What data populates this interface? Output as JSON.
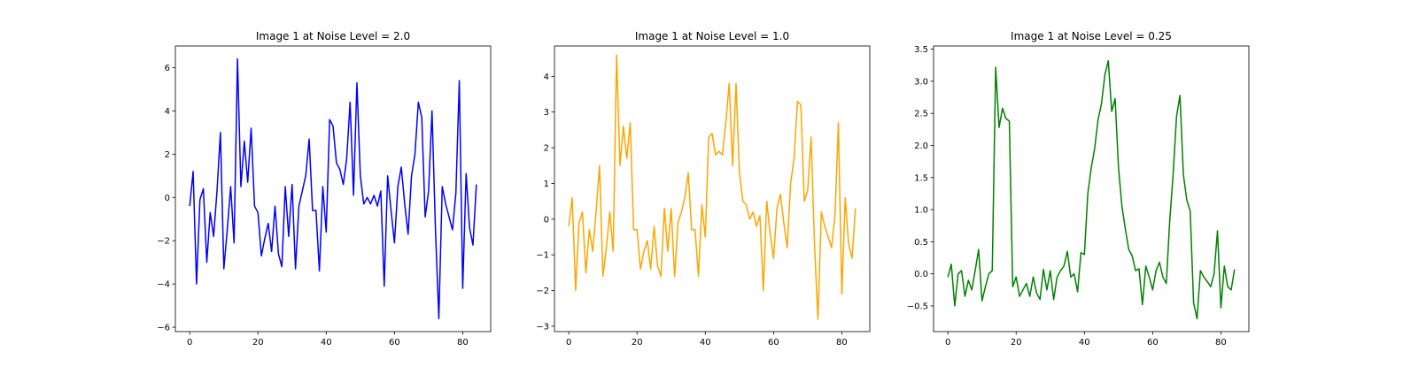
{
  "chart_data": [
    {
      "type": "line",
      "title": "Image 1 at Noise Level = 2.0",
      "color": "#0000ff",
      "xlim": [
        -4.2,
        88.2
      ],
      "ylim": [
        -6.2,
        7.0
      ],
      "xticks": [
        0,
        20,
        40,
        60,
        80
      ],
      "yticks": [
        -6,
        -4,
        -2,
        0,
        2,
        4,
        6
      ],
      "series": [
        {
          "x": [
            0,
            1,
            2,
            3,
            4,
            5,
            6,
            7,
            8,
            9,
            10,
            11,
            12,
            13,
            14,
            15,
            16,
            17,
            18,
            19,
            20,
            21,
            22,
            23,
            24,
            25,
            26,
            27,
            28,
            29,
            30,
            31,
            32,
            33,
            34,
            35,
            36,
            37,
            38,
            39,
            40,
            41,
            42,
            43,
            44,
            45,
            46,
            47,
            48,
            49,
            50,
            51,
            52,
            53,
            54,
            55,
            56,
            57,
            58,
            59,
            60,
            61,
            62,
            63,
            64,
            65,
            66,
            67,
            68,
            69,
            70,
            71,
            72,
            73,
            74,
            75,
            76,
            77,
            78,
            79,
            80,
            81,
            82,
            83,
            84
          ],
          "values": [
            -0.4,
            1.2,
            -4.0,
            -0.1,
            0.4,
            -3.0,
            -0.7,
            -1.8,
            0.3,
            3.0,
            -3.3,
            -1.5,
            0.5,
            -2.1,
            6.4,
            0.5,
            2.6,
            0.7,
            3.2,
            -0.4,
            -0.7,
            -2.7,
            -1.9,
            -1.2,
            -2.5,
            -0.4,
            -2.6,
            -3.2,
            0.5,
            -1.8,
            0.6,
            -3.3,
            -0.4,
            0.3,
            1.0,
            2.7,
            -0.6,
            -0.6,
            -3.4,
            0.5,
            -1.6,
            3.6,
            3.3,
            1.6,
            1.3,
            0.6,
            1.8,
            4.4,
            0.1,
            5.3,
            1.0,
            -0.3,
            0.0,
            -0.3,
            0.1,
            -0.4,
            0.3,
            -4.1,
            1.0,
            -0.6,
            -2.1,
            0.5,
            1.4,
            -0.3,
            -1.7,
            1.0,
            2.0,
            4.4,
            3.7,
            -0.9,
            0.3,
            4.0,
            -1.4,
            -5.6,
            0.5,
            -0.3,
            -0.9,
            -1.5,
            0.2,
            5.4,
            -4.2,
            1.1,
            -1.4,
            -2.2,
            0.6
          ]
        }
      ]
    },
    {
      "type": "line",
      "title": "Image 1 at Noise Level = 1.0",
      "color": "#ffa500",
      "xlim": [
        -4.2,
        88.2
      ],
      "ylim": [
        -3.15,
        4.85
      ],
      "xticks": [
        0,
        20,
        40,
        60,
        80
      ],
      "yticks": [
        -3,
        -2,
        -1,
        0,
        1,
        2,
        3,
        4
      ],
      "series": [
        {
          "x": [
            0,
            1,
            2,
            3,
            4,
            5,
            6,
            7,
            8,
            9,
            10,
            11,
            12,
            13,
            14,
            15,
            16,
            17,
            18,
            19,
            20,
            21,
            22,
            23,
            24,
            25,
            26,
            27,
            28,
            29,
            30,
            31,
            32,
            33,
            34,
            35,
            36,
            37,
            38,
            39,
            40,
            41,
            42,
            43,
            44,
            45,
            46,
            47,
            48,
            49,
            50,
            51,
            52,
            53,
            54,
            55,
            56,
            57,
            58,
            59,
            60,
            61,
            62,
            63,
            64,
            65,
            66,
            67,
            68,
            69,
            70,
            71,
            72,
            73,
            74,
            75,
            76,
            77,
            78,
            79,
            80,
            81,
            82,
            83,
            84
          ],
          "values": [
            -0.2,
            0.6,
            -2.0,
            -0.1,
            0.2,
            -1.5,
            -0.3,
            -0.9,
            0.2,
            1.5,
            -1.6,
            -0.8,
            0.2,
            -0.9,
            4.6,
            1.5,
            2.6,
            1.7,
            2.7,
            -0.3,
            -0.3,
            -1.4,
            -0.9,
            -0.6,
            -1.4,
            -0.2,
            -1.3,
            -1.6,
            0.3,
            -0.9,
            0.3,
            -1.6,
            -0.1,
            0.2,
            0.6,
            1.3,
            -0.3,
            -0.3,
            -1.6,
            0.4,
            -0.5,
            2.3,
            2.4,
            1.8,
            1.9,
            1.8,
            2.7,
            3.8,
            1.5,
            3.8,
            1.3,
            0.5,
            0.4,
            0.0,
            0.2,
            -0.2,
            0.1,
            -2.0,
            0.5,
            -0.4,
            -1.1,
            0.3,
            0.7,
            -0.1,
            -0.8,
            1.0,
            1.7,
            3.3,
            3.2,
            0.5,
            0.8,
            2.3,
            -0.7,
            -2.8,
            0.2,
            -0.2,
            -0.5,
            -0.8,
            0.1,
            2.7,
            -2.1,
            0.6,
            -0.7,
            -1.1,
            0.3
          ]
        }
      ]
    },
    {
      "type": "line",
      "title": "Image 1 at Noise Level = 0.25",
      "color": "#008000",
      "xlim": [
        -4.2,
        88.2
      ],
      "ylim": [
        -0.9,
        3.55
      ],
      "xticks": [
        0,
        20,
        40,
        60,
        80
      ],
      "yticks": [
        -0.5,
        0.0,
        0.5,
        1.0,
        1.5,
        2.0,
        2.5,
        3.0,
        3.5
      ],
      "series": [
        {
          "x": [
            0,
            1,
            2,
            3,
            4,
            5,
            6,
            7,
            8,
            9,
            10,
            11,
            12,
            13,
            14,
            15,
            16,
            17,
            18,
            19,
            20,
            21,
            22,
            23,
            24,
            25,
            26,
            27,
            28,
            29,
            30,
            31,
            32,
            33,
            34,
            35,
            36,
            37,
            38,
            39,
            40,
            41,
            42,
            43,
            44,
            45,
            46,
            47,
            48,
            49,
            50,
            51,
            52,
            53,
            54,
            55,
            56,
            57,
            58,
            59,
            60,
            61,
            62,
            63,
            64,
            65,
            66,
            67,
            68,
            69,
            70,
            71,
            72,
            73,
            74,
            75,
            76,
            77,
            78,
            79,
            80,
            81,
            82,
            83,
            84
          ],
          "values": [
            -0.05,
            0.15,
            -0.5,
            0.0,
            0.05,
            -0.35,
            -0.1,
            -0.25,
            0.05,
            0.38,
            -0.42,
            -0.2,
            0.0,
            0.05,
            3.22,
            2.28,
            2.58,
            2.42,
            2.38,
            -0.2,
            -0.05,
            -0.35,
            -0.25,
            -0.15,
            -0.35,
            -0.05,
            -0.3,
            -0.4,
            0.07,
            -0.25,
            0.05,
            -0.4,
            -0.05,
            0.05,
            0.12,
            0.35,
            -0.05,
            0.0,
            -0.28,
            0.33,
            0.3,
            1.25,
            1.65,
            1.95,
            2.4,
            2.65,
            3.1,
            3.32,
            2.53,
            2.73,
            1.65,
            1.05,
            0.7,
            0.38,
            0.28,
            0.05,
            0.08,
            -0.48,
            0.12,
            -0.05,
            -0.25,
            0.05,
            0.18,
            -0.05,
            -0.15,
            0.82,
            1.55,
            2.45,
            2.78,
            1.55,
            1.15,
            0.98,
            -0.45,
            -0.7,
            0.05,
            -0.05,
            -0.12,
            -0.2,
            0.0,
            0.67,
            -0.53,
            0.12,
            -0.2,
            -0.25,
            0.07
          ]
        }
      ]
    }
  ]
}
